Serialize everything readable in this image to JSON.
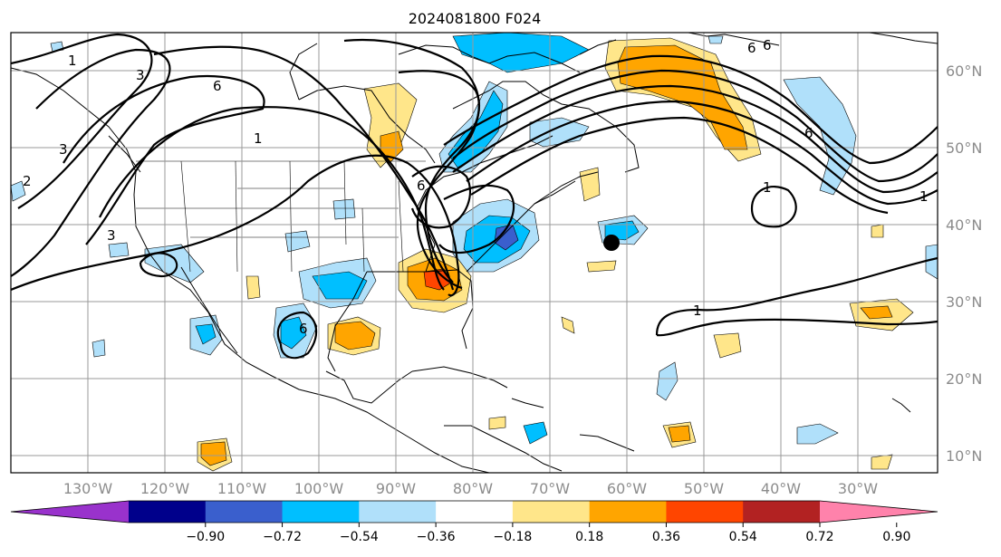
{
  "title": "2024081800 F024",
  "lat_labels": [
    "60°N",
    "50°N",
    "40°N",
    "30°N",
    "20°N",
    "10°N"
  ],
  "lon_labels": [
    "130°W",
    "120°W",
    "110°W",
    "100°W",
    "90°W",
    "80°W",
    "70°W",
    "60°W",
    "50°W",
    "40°W",
    "30°W"
  ],
  "contour_labels": [
    "1",
    "1",
    "1",
    "1",
    "1",
    "2",
    "3",
    "3",
    "3",
    "6",
    "6",
    "6",
    "6",
    "6",
    "6"
  ],
  "colorbar": {
    "tick_labels": [
      "−0.90",
      "−0.72",
      "−0.54",
      "−0.36",
      "−0.18",
      "0.18",
      "0.36",
      "0.54",
      "0.72",
      "0.90"
    ],
    "colors": [
      "#9932cc",
      "#00008b",
      "#3a5fcd",
      "#00bfff",
      "#b0e0fa",
      "#ffffff",
      "#ffe68a",
      "#ffa500",
      "#ff4500",
      "#b22222",
      "#ff82ab"
    ]
  },
  "markers": {
    "storm_center": "●"
  }
}
